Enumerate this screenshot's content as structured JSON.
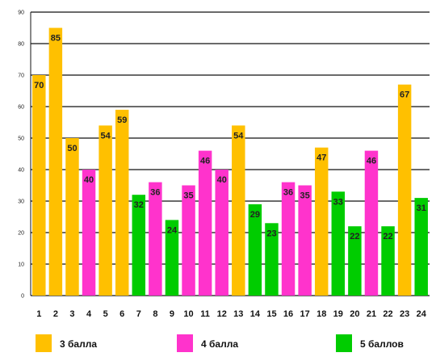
{
  "chart_data": {
    "type": "bar",
    "categories": [
      "1",
      "2",
      "3",
      "4",
      "5",
      "6",
      "7",
      "8",
      "9",
      "10",
      "11",
      "12",
      "13",
      "14",
      "15",
      "16",
      "17",
      "18",
      "19",
      "20",
      "21",
      "22",
      "23",
      "24"
    ],
    "values": [
      70,
      85,
      50,
      40,
      54,
      59,
      32,
      36,
      24,
      35,
      46,
      40,
      54,
      29,
      23,
      36,
      35,
      47,
      33,
      22,
      46,
      22,
      67,
      31
    ],
    "groups": [
      "3 балла",
      "3 балла",
      "3 балла",
      "4 балла",
      "3 балла",
      "3 балла",
      "5 баллов",
      "4 балла",
      "5 баллов",
      "4 балла",
      "4 балла",
      "4 балла",
      "3 балла",
      "5 баллов",
      "5 баллов",
      "4 балла",
      "4 балла",
      "3 балла",
      "5 баллов",
      "5 баллов",
      "4 балла",
      "5 баллов",
      "3 балла",
      "5 баллов"
    ],
    "legend": [
      {
        "name": "3 балла",
        "color": "#FFC000"
      },
      {
        "name": "4 балла",
        "color": "#FF33CC"
      },
      {
        "name": "5 баллов",
        "color": "#00CC00"
      }
    ],
    "legend_position": "bottom",
    "ylim": [
      0,
      90
    ],
    "yticks": [
      0,
      10,
      20,
      30,
      40,
      50,
      60,
      70,
      80,
      90
    ],
    "grid": true,
    "title": "",
    "xlabel": "",
    "ylabel": ""
  }
}
